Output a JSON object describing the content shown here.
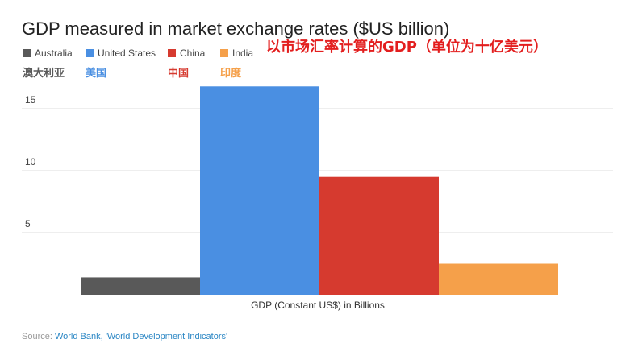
{
  "title": "GDP measured in market exchange rates ($US billion)",
  "subtitle_cn": "以市场汇率计算的GDP（单位为十亿美元）",
  "legend": [
    {
      "label": "Australia",
      "label_cn": "澳大利亚",
      "color": "#595959",
      "cn_color": "#595959"
    },
    {
      "label": "United States",
      "label_cn": "美国",
      "color": "#4a8fe2",
      "cn_color": "#4a8fe2"
    },
    {
      "label": "China",
      "label_cn": "中国",
      "color": "#d63a2f",
      "cn_color": "#d63a2f"
    },
    {
      "label": "India",
      "label_cn": "印度",
      "color": "#f5a04a",
      "cn_color": "#f5a04a"
    }
  ],
  "source": {
    "prefix": "Source: ",
    "link_text": "World Bank, 'World Development Indicators'"
  },
  "chart_data": {
    "type": "bar",
    "title": "GDP measured in market exchange rates ($US billion)",
    "xlabel": "GDP (Constant US$) in Billions",
    "ylabel": "",
    "categories": [
      "GDP (Constant US$) in Billions"
    ],
    "series": [
      {
        "name": "Australia",
        "values": [
          1.4
        ],
        "color": "#595959"
      },
      {
        "name": "United States",
        "values": [
          16.8
        ],
        "color": "#4a8fe2"
      },
      {
        "name": "China",
        "values": [
          9.5
        ],
        "color": "#d63a2f"
      },
      {
        "name": "India",
        "values": [
          2.5
        ],
        "color": "#f5a04a"
      }
    ],
    "ylim": [
      0,
      17.5
    ],
    "yticks": [
      5,
      10,
      15
    ],
    "ytick_labels": [
      "5",
      "10",
      "15"
    ],
    "grid": true,
    "legend_position": "top-left"
  }
}
